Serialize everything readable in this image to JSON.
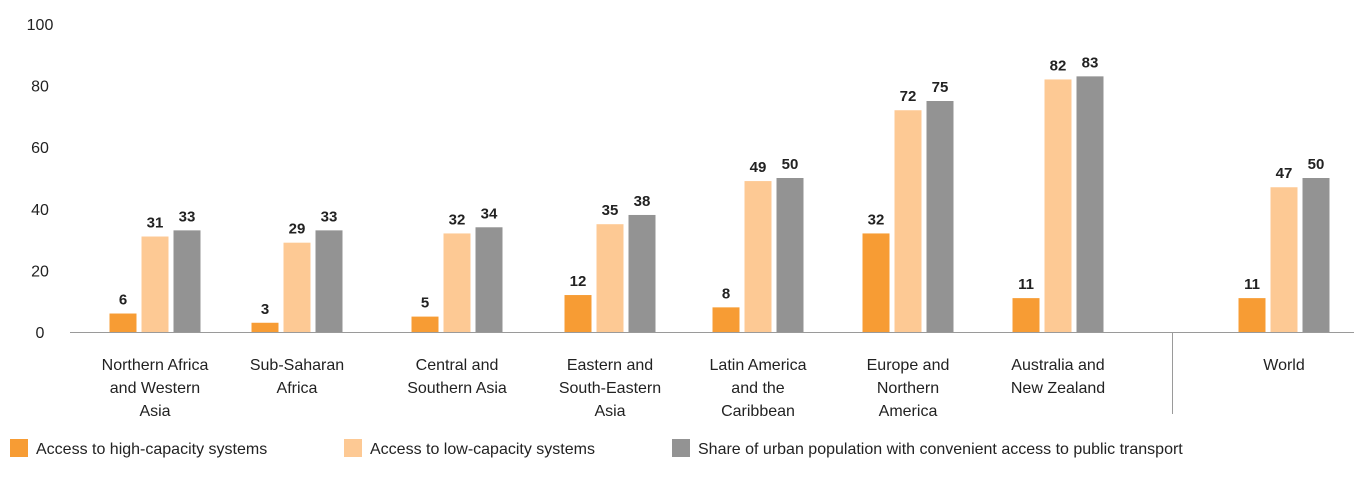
{
  "chart_data": {
    "type": "bar",
    "categories": [
      [
        "Northern Africa",
        "and Western",
        "Asia"
      ],
      [
        "Sub-Saharan",
        "Africa"
      ],
      [
        "Central and",
        "Southern Asia"
      ],
      [
        "Eastern and",
        "South-Eastern",
        "Asia"
      ],
      [
        "Latin America",
        "and the",
        "Caribbean"
      ],
      [
        "Europe and",
        "Northern",
        "America"
      ],
      [
        "Australia and",
        "New Zealand"
      ],
      [
        "World"
      ]
    ],
    "series": [
      {
        "name": "Access to high-capacity systems",
        "color": "#f79c34",
        "values": [
          6,
          3,
          5,
          12,
          8,
          32,
          11,
          11
        ]
      },
      {
        "name": "Access to low-capacity systems",
        "color": "#fdc994",
        "values": [
          31,
          29,
          32,
          35,
          49,
          72,
          82,
          47
        ]
      },
      {
        "name": "Share of urban population with convenient access to public transport",
        "color": "#939393",
        "values": [
          33,
          33,
          34,
          38,
          50,
          75,
          83,
          50
        ]
      }
    ],
    "y_ticks": [
      "0",
      "20",
      "40",
      "60",
      "80",
      "100"
    ],
    "ylim": [
      0,
      100
    ],
    "grid": false,
    "separator_before_last_category": true,
    "legend_position": "bottom-left",
    "title": "",
    "xlabel": "",
    "ylabel": ""
  }
}
